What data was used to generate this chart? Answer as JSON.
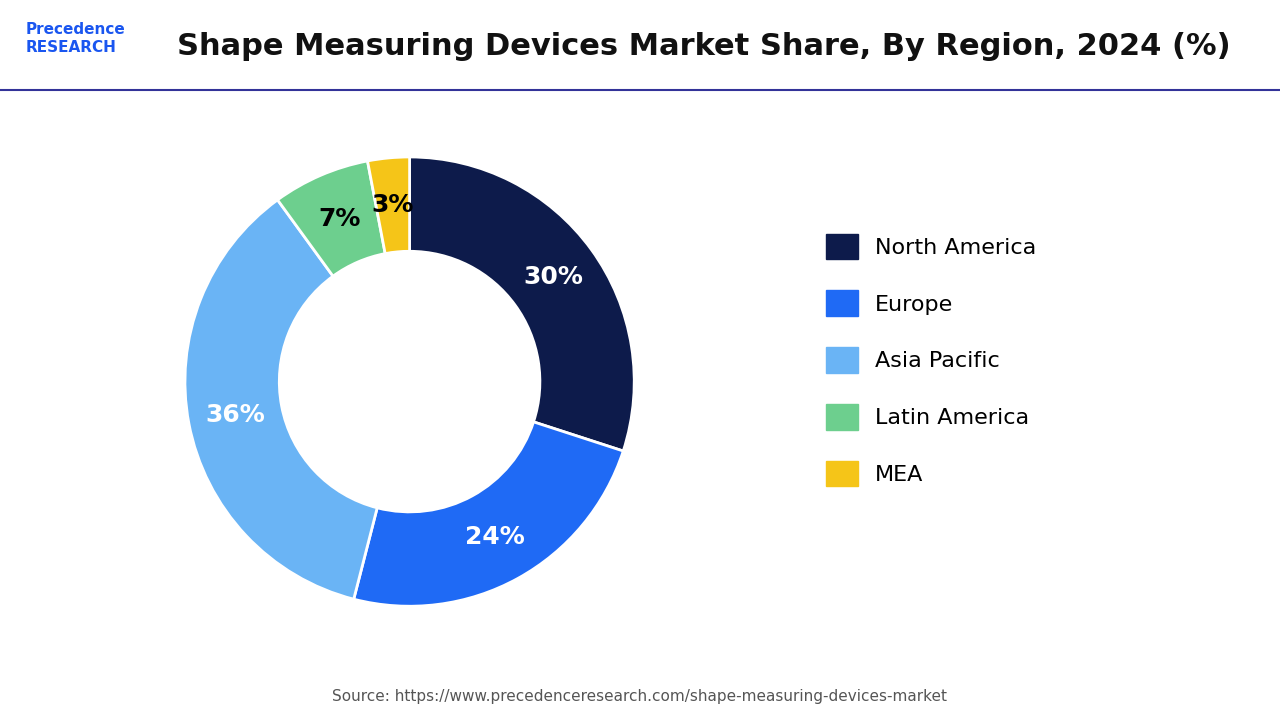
{
  "title": "Shape Measuring Devices Market Share, By Region, 2024 (%)",
  "source_text": "Source: https://www.precedenceresearch.com/shape-measuring-devices-market",
  "labels": [
    "North America",
    "Europe",
    "Asia Pacific",
    "Latin America",
    "MEA"
  ],
  "values": [
    30,
    24,
    36,
    7,
    3
  ],
  "colors": [
    "#0d1b4b",
    "#1f6af5",
    "#6ab4f5",
    "#6dcf8e",
    "#f5c518"
  ],
  "pct_labels": [
    "30%",
    "24%",
    "36%",
    "7%",
    "3%"
  ],
  "pct_label_colors": [
    "white",
    "white",
    "white",
    "black",
    "black"
  ],
  "background_color": "#ffffff",
  "title_fontsize": 22,
  "legend_fontsize": 16,
  "pct_fontsize": 18,
  "donut_width": 0.42,
  "start_angle": 90
}
